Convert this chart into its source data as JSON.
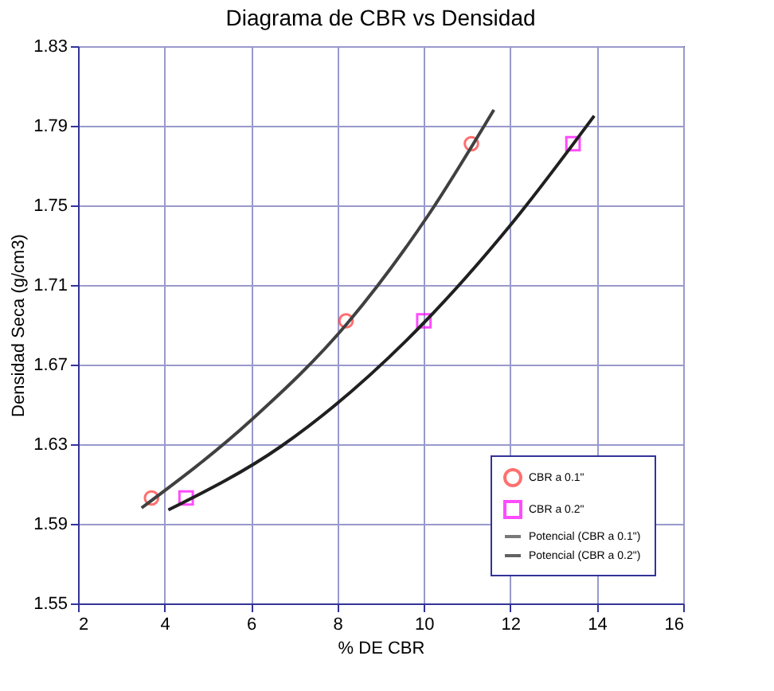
{
  "chart_data": {
    "type": "scatter",
    "title": "Diagrama de CBR vs  Densidad",
    "xlabel": "% DE CBR",
    "ylabel": "Densidad Seca (g/cm3)",
    "xlim": [
      2,
      16
    ],
    "xticks": [
      2,
      4,
      6,
      8,
      10,
      12,
      14,
      16
    ],
    "ylim": [
      1.55,
      1.83
    ],
    "yticks": [
      1.55,
      1.59,
      1.63,
      1.67,
      1.71,
      1.75,
      1.79,
      1.83
    ],
    "grid": true,
    "legend": "bottom right",
    "series": [
      {
        "name": "CBR a 0.1\"",
        "marker": "circle",
        "color": "#ff3333",
        "x": [
          3.7,
          8.2,
          11.1
        ],
        "values": [
          1.603,
          1.692,
          1.781
        ]
      },
      {
        "name": "CBR a 0.2\"",
        "marker": "square",
        "color": "#ff00ff",
        "x": [
          4.5,
          10.0,
          13.45
        ],
        "values": [
          1.603,
          1.692,
          1.781
        ]
      },
      {
        "name": "Potencial (CBR a 0.1\")",
        "type": "line",
        "color": "#404040",
        "x": [
          3.47,
          6.0,
          8.24,
          10.1,
          11.62
        ],
        "values": [
          1.598,
          1.642,
          1.691,
          1.745,
          1.798
        ]
      },
      {
        "name": "Potencial (CBR a 0.2\")",
        "type": "line",
        "color": "#202020",
        "x": [
          4.09,
          6.7,
          10.0,
          12.0,
          13.94
        ],
        "values": [
          1.597,
          1.629,
          1.691,
          1.74,
          1.795
        ]
      }
    ]
  }
}
